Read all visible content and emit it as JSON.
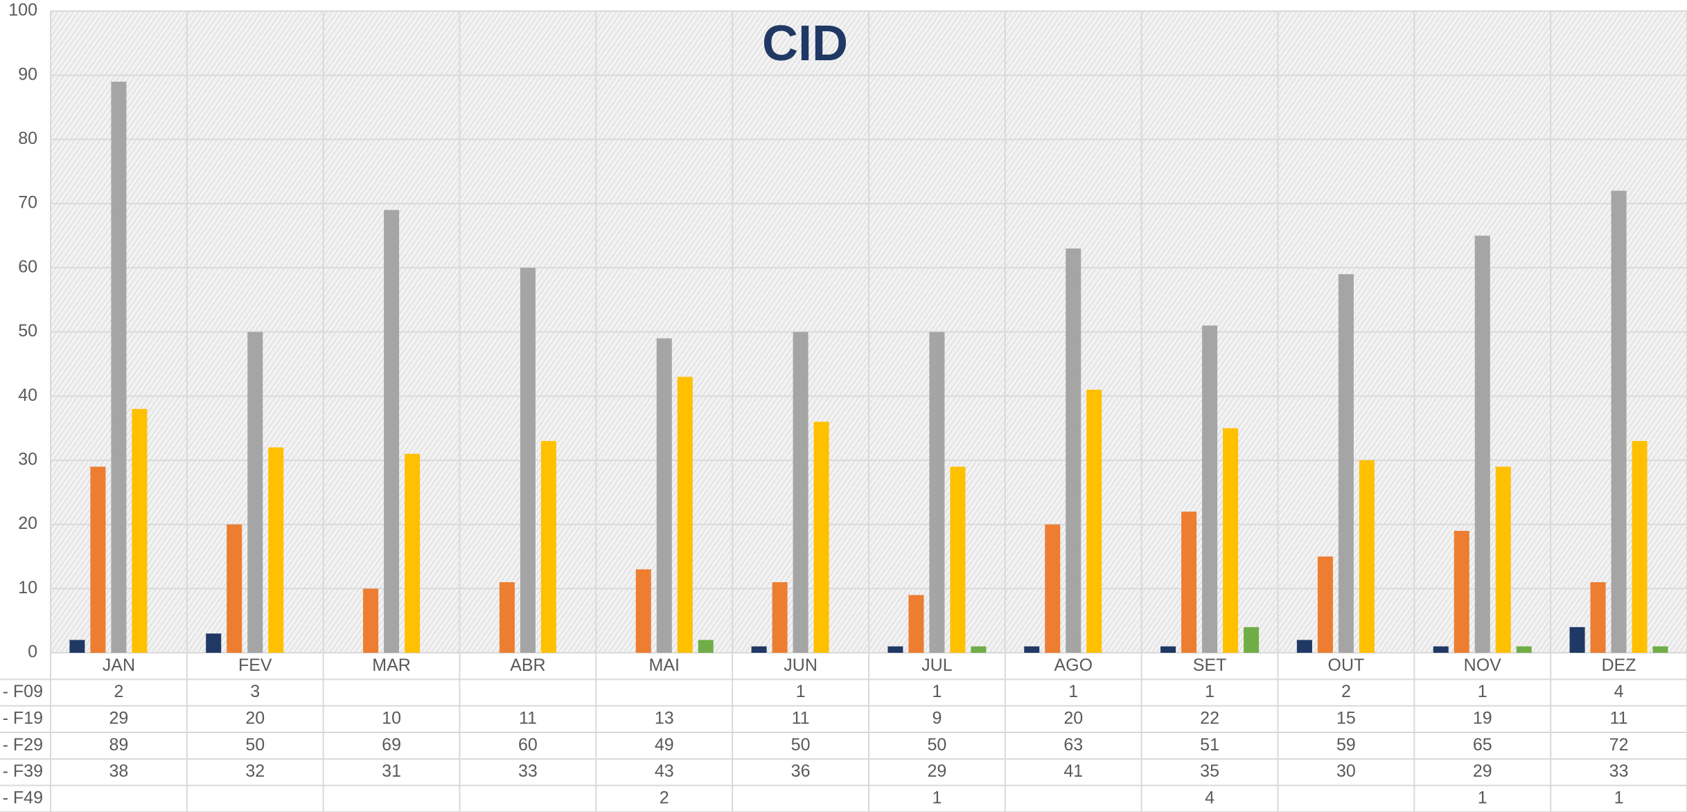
{
  "chart_data": {
    "type": "bar",
    "title": "CID",
    "categories": [
      "JAN",
      "FEV",
      "MAR",
      "ABR",
      "MAI",
      "JUN",
      "JUL",
      "AGO",
      "SET",
      "OUT",
      "NOV",
      "DEZ"
    ],
    "series": [
      {
        "name": "- F09",
        "color": "#203864",
        "values": [
          2,
          3,
          null,
          null,
          null,
          1,
          1,
          1,
          1,
          2,
          1,
          4
        ]
      },
      {
        "name": "- F19",
        "color": "#ed7d31",
        "values": [
          29,
          20,
          10,
          11,
          13,
          11,
          9,
          20,
          22,
          15,
          19,
          11
        ]
      },
      {
        "name": "- F29",
        "color": "#a5a5a5",
        "values": [
          89,
          50,
          69,
          60,
          49,
          50,
          50,
          63,
          51,
          59,
          65,
          72
        ]
      },
      {
        "name": "- F39",
        "color": "#ffc000",
        "values": [
          38,
          32,
          31,
          33,
          43,
          36,
          29,
          41,
          35,
          30,
          29,
          33
        ]
      },
      {
        "name": "- F49",
        "color": "#70ad47",
        "values": [
          null,
          null,
          null,
          null,
          2,
          null,
          1,
          null,
          4,
          null,
          1,
          1
        ]
      }
    ],
    "ylim": [
      0,
      100
    ],
    "yticks": [
      0,
      10,
      20,
      30,
      40,
      50,
      60,
      70,
      80,
      90,
      100
    ],
    "grid": true
  }
}
